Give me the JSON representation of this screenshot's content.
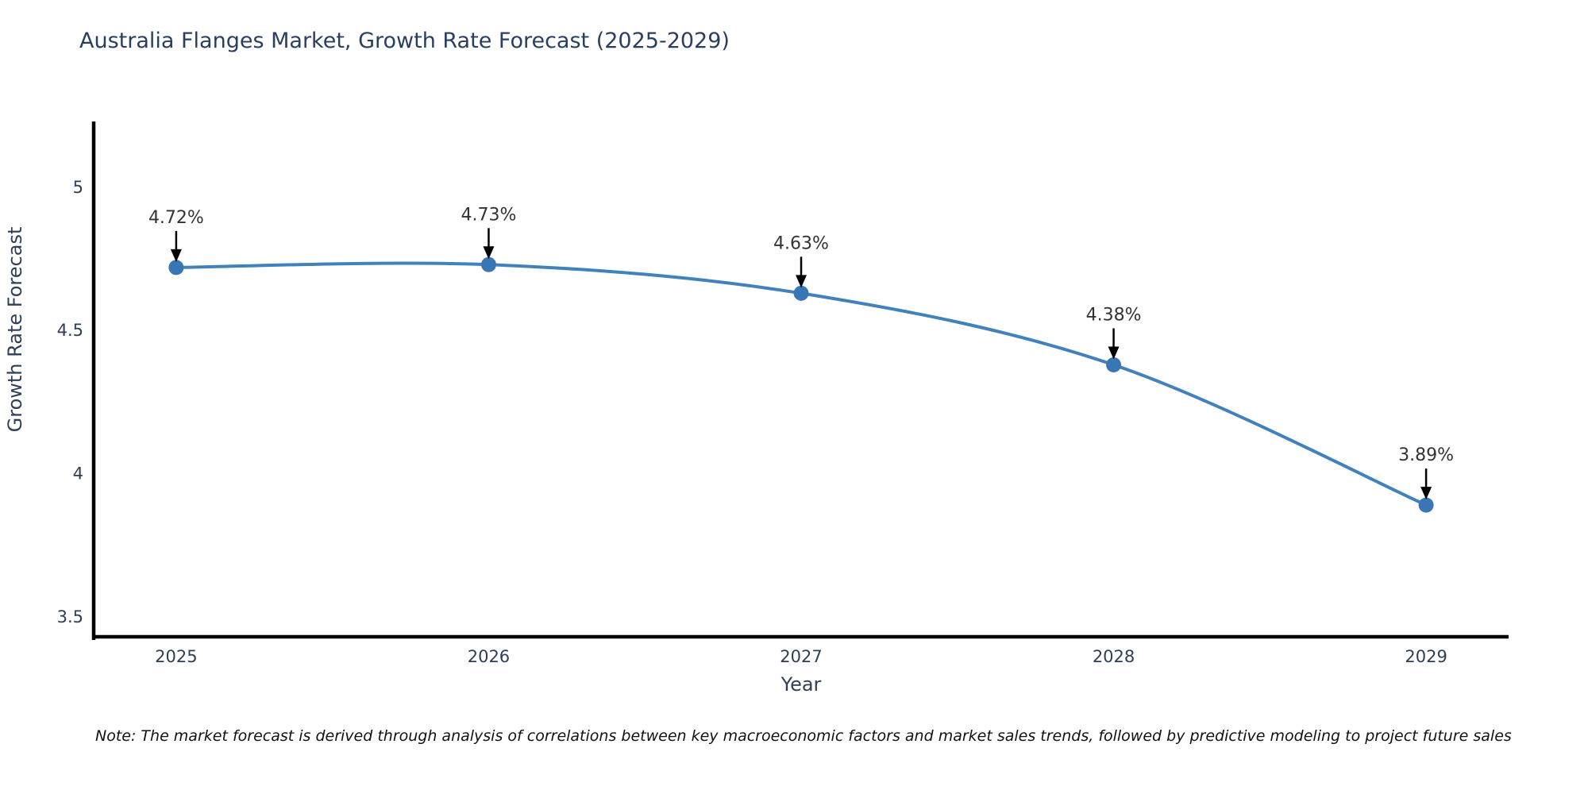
{
  "title": "Australia Flanges Market, Growth Rate Forecast (2025-2029)",
  "note": "Note: The market forecast is derived through analysis of correlations between key macroeconomic factors and market sales trends, followed by predictive modeling to project future sales",
  "colors": {
    "title_text": "#2a3f5f",
    "axis_line": "#000000",
    "tick_text": "#2f3f55",
    "line": "#4182bc",
    "marker": "#3876b4",
    "annotation_text": "#333333",
    "annotation_arrow": "#000000",
    "background": "#ffffff"
  },
  "chart_data": {
    "type": "line",
    "title": "Australia Flanges Market, Growth Rate Forecast (2025-2029)",
    "x": [
      2025,
      2026,
      2027,
      2028,
      2029
    ],
    "values": [
      4.72,
      4.73,
      4.63,
      4.38,
      3.89
    ],
    "point_labels": [
      "4.72%",
      "4.73%",
      "4.63%",
      "4.38%",
      "3.89%"
    ],
    "series_name": "Growth Rate Forecast",
    "xlabel": "Year",
    "ylabel": "Growth Rate Forecast",
    "xticks": [
      2025,
      2026,
      2027,
      2028,
      2029
    ],
    "xtick_labels": [
      "2025",
      "2026",
      "2027",
      "2028",
      "2029"
    ],
    "yticks": [
      3.5,
      4,
      4.5,
      5
    ],
    "ytick_labels": [
      "3.5",
      "4",
      "4.5",
      "5"
    ],
    "xlim": [
      2024.736,
      2029.264
    ],
    "ylim": [
      3.43,
      5.23
    ],
    "grid": false,
    "legend": false,
    "line_shape": "spline",
    "annotations_have_arrows": true
  }
}
